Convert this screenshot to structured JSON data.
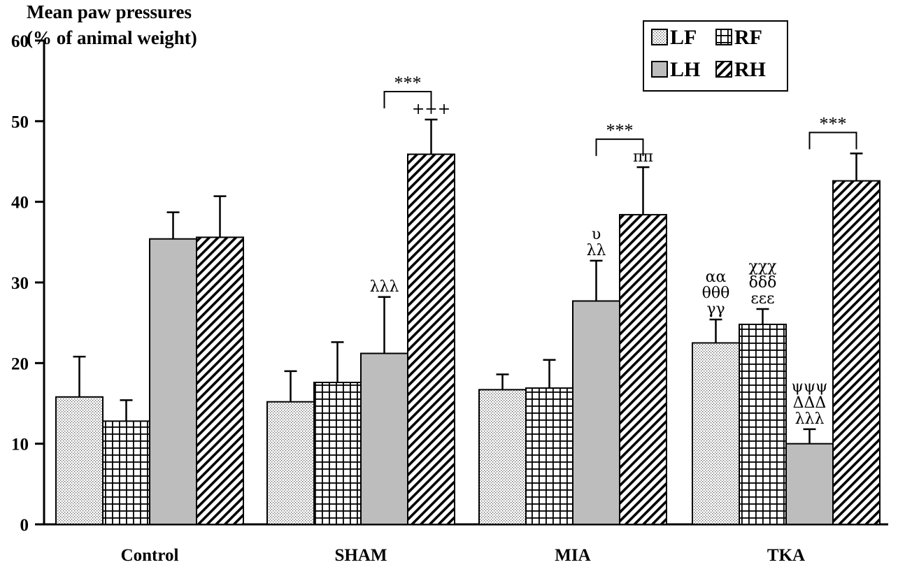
{
  "chart_data": {
    "type": "bar",
    "ylabel_lines": [
      "Mean paw pressures",
      "(% of animal weight)"
    ],
    "ylim": [
      0,
      60
    ],
    "yticks": [
      0,
      10,
      20,
      30,
      40,
      50,
      60
    ],
    "categories": [
      "Control",
      "SHAM",
      "MIA",
      "TKA"
    ],
    "legend_position": "top-right",
    "series": [
      {
        "name": "LF",
        "pattern": "dots",
        "values": [
          15.8,
          15.2,
          16.7,
          22.5
        ],
        "errors": [
          5.0,
          3.8,
          1.9,
          2.9
        ]
      },
      {
        "name": "RF",
        "pattern": "grid",
        "values": [
          12.8,
          17.6,
          16.9,
          24.8
        ],
        "errors": [
          2.6,
          5.0,
          3.5,
          1.9
        ]
      },
      {
        "name": "LH",
        "pattern": "gray",
        "values": [
          35.4,
          21.2,
          27.7,
          10.0
        ],
        "errors": [
          3.3,
          7.0,
          5.0,
          1.8
        ]
      },
      {
        "name": "RH",
        "pattern": "hatch",
        "values": [
          35.6,
          45.9,
          38.4,
          42.6
        ],
        "errors": [
          5.1,
          4.3,
          5.9,
          3.4
        ]
      }
    ],
    "annotations": [
      {
        "category": 1,
        "series": 2,
        "lines": [
          "λλλ"
        ]
      },
      {
        "category": 1,
        "series": 3,
        "lines": [
          "+++"
        ]
      },
      {
        "category": 2,
        "series": 2,
        "lines": [
          "υ",
          "λλ"
        ]
      },
      {
        "category": 2,
        "series": 3,
        "lines": [
          "ππ"
        ]
      },
      {
        "category": 3,
        "series": 0,
        "lines": [
          "αα",
          "θθθ",
          "γγ"
        ]
      },
      {
        "category": 3,
        "series": 1,
        "lines": [
          "χχχ",
          "δδδ",
          "εεε"
        ]
      },
      {
        "category": 3,
        "series": 2,
        "lines": [
          "ψψψ",
          "ΔΔΔ",
          "λλλ"
        ]
      }
    ],
    "significance": [
      {
        "category": 1,
        "from_series": 2,
        "to_series": 3,
        "label": "***"
      },
      {
        "category": 2,
        "from_series": 2,
        "to_series": 3,
        "label": "***"
      },
      {
        "category": 3,
        "from_series": 2,
        "to_series": 3,
        "label": "***"
      }
    ]
  }
}
